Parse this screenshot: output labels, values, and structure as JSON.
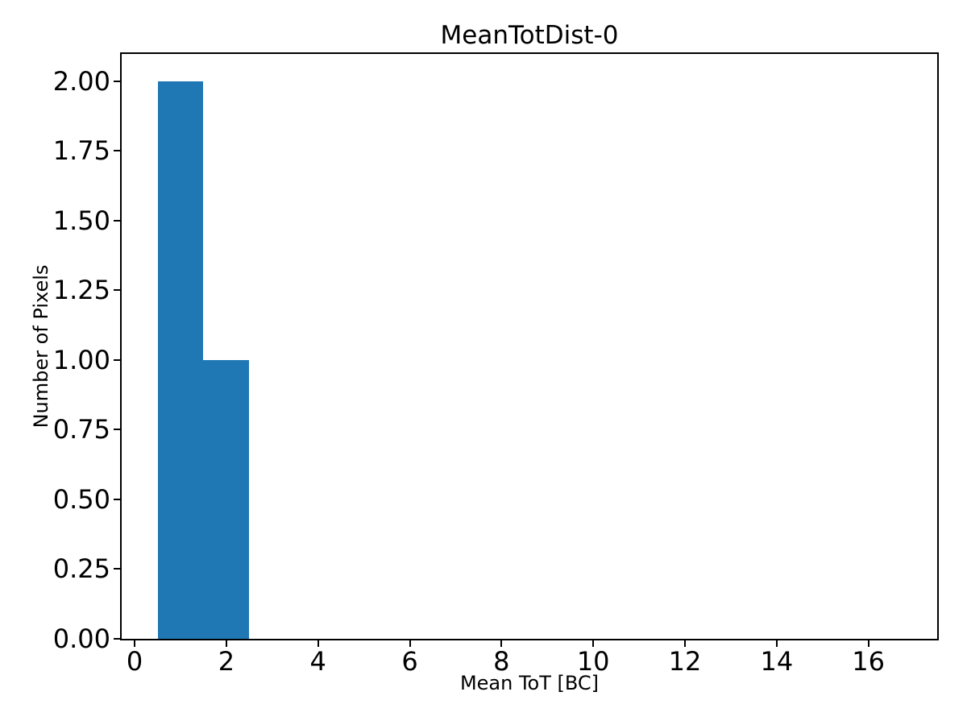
{
  "chart_data": {
    "type": "bar",
    "title": "MeanTotDist-0",
    "xlabel": "Mean ToT [BC]",
    "ylabel": "Number of Pixels",
    "bar_color": "#1f77b4",
    "spine_color": "#000000",
    "background_color": "#ffffff",
    "grid": false,
    "legend": false,
    "xlim": [
      -0.3,
      17.5
    ],
    "ylim": [
      0,
      2.1
    ],
    "x_ticks": [
      {
        "value": 0,
        "label": "0"
      },
      {
        "value": 2,
        "label": "2"
      },
      {
        "value": 4,
        "label": "4"
      },
      {
        "value": 6,
        "label": "6"
      },
      {
        "value": 8,
        "label": "8"
      },
      {
        "value": 10,
        "label": "10"
      },
      {
        "value": 12,
        "label": "12"
      },
      {
        "value": 14,
        "label": "14"
      },
      {
        "value": 16,
        "label": "16"
      }
    ],
    "y_ticks": [
      {
        "value": 0.0,
        "label": "0.00"
      },
      {
        "value": 0.25,
        "label": "0.25"
      },
      {
        "value": 0.5,
        "label": "0.50"
      },
      {
        "value": 0.75,
        "label": "0.75"
      },
      {
        "value": 1.0,
        "label": "1.00"
      },
      {
        "value": 1.25,
        "label": "1.25"
      },
      {
        "value": 1.5,
        "label": "1.50"
      },
      {
        "value": 1.75,
        "label": "1.75"
      },
      {
        "value": 2.0,
        "label": "2.00"
      }
    ],
    "bars": [
      {
        "x0": 0.5,
        "x1": 1.5,
        "count": 2
      },
      {
        "x0": 1.5,
        "x1": 2.5,
        "count": 1
      }
    ]
  }
}
